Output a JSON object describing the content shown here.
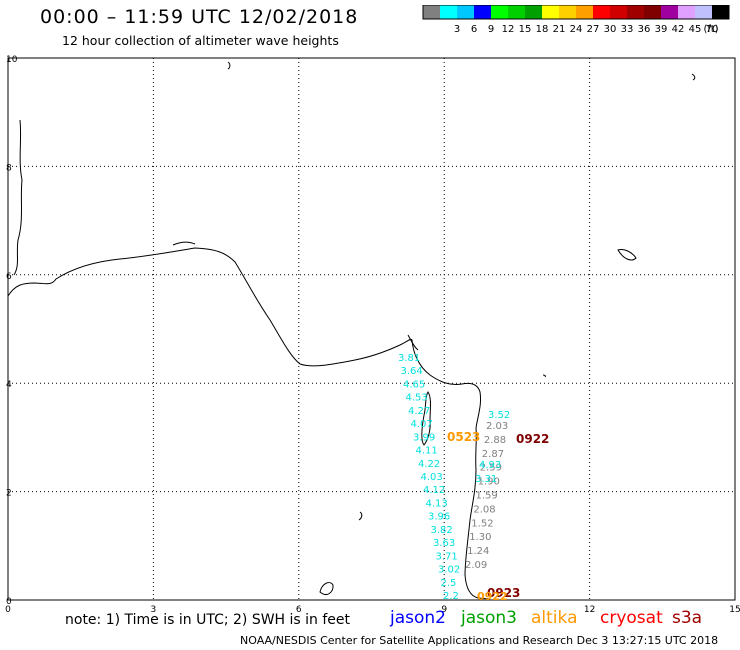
{
  "header": {
    "title": "00:00 – 11:59 UTC 12/02/2018",
    "subtitle": "12 hour collection of altimeter wave heights"
  },
  "legend": {
    "unit": "(ft)",
    "bins": [
      {
        "color": "#808080",
        "label": ""
      },
      {
        "color": "#00ffff",
        "label": "3"
      },
      {
        "color": "#00c8ff",
        "label": "6"
      },
      {
        "color": "#0000ff",
        "label": "9"
      },
      {
        "color": "#00ff00",
        "label": "12"
      },
      {
        "color": "#00d000",
        "label": "15"
      },
      {
        "color": "#00a000",
        "label": "18"
      },
      {
        "color": "#ffff00",
        "label": "21"
      },
      {
        "color": "#ffd000",
        "label": "24"
      },
      {
        "color": "#ffa000",
        "label": "27"
      },
      {
        "color": "#ff0000",
        "label": "30"
      },
      {
        "color": "#d00000",
        "label": "33"
      },
      {
        "color": "#a00000",
        "label": "36"
      },
      {
        "color": "#800000",
        "label": "39"
      },
      {
        "color": "#a000a0",
        "label": "42"
      },
      {
        "color": "#e0a0ff",
        "label": "45"
      },
      {
        "color": "#c0c0ff",
        "label": "70"
      },
      {
        "color": "#000000",
        "label": ""
      }
    ]
  },
  "axes": {
    "x_ticks": [
      "0",
      "3",
      "6",
      "9",
      "12",
      "15"
    ],
    "y_ticks": [
      "0",
      "2",
      "4",
      "6",
      "8",
      "10"
    ]
  },
  "tracks": {
    "jason2": {
      "color": "#00e0e0",
      "values": [
        "3.81",
        "3.64",
        "4.65",
        "4.53",
        "4.27",
        "4.07",
        "3.99",
        "4.11",
        "4.22",
        "4.03",
        "4.12",
        "4.13",
        "3.96",
        "3.82",
        "3.63",
        "3.71",
        "3.02",
        "2.5",
        "2.2"
      ]
    },
    "altika": {
      "color": "#808080",
      "values": [
        "2.03",
        "2.88",
        "2.87",
        "2.59",
        "1.90",
        "1.59",
        "2.08",
        "1.52",
        "1.30",
        "1.24",
        "2.09"
      ]
    },
    "jason3_cyan": {
      "color": "#00e0e0",
      "values": [
        "3.52",
        "4.93",
        "3.31"
      ]
    }
  },
  "pass_labels": [
    {
      "text": "0523",
      "color": "#ff9900"
    },
    {
      "text": "0922",
      "color": "#800000"
    },
    {
      "text": "0923",
      "color": "#800000"
    },
    {
      "text": "0922",
      "color": "#ff9900"
    }
  ],
  "note": "note: 1) Time is in UTC; 2) SWH is in feet",
  "satellites": [
    {
      "name": "jason2",
      "color": "#0000ff"
    },
    {
      "name": "jason3",
      "color": "#00a000"
    },
    {
      "name": "altika",
      "color": "#ff9900"
    },
    {
      "name": "cryosat",
      "color": "#ff0000"
    },
    {
      "name": "s3a",
      "color": "#a00000"
    }
  ],
  "footer": "NOAA/NESDIS Center for Satellite Applications and Research    Dec  3 13:27:15 UTC 2018"
}
